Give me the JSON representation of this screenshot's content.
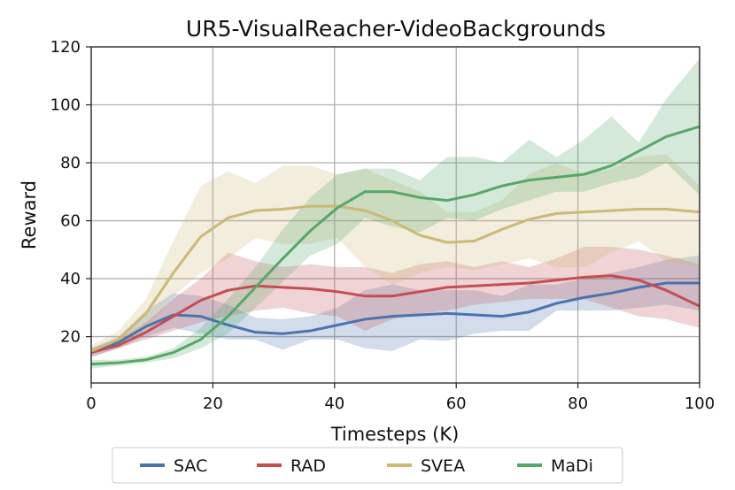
{
  "chart_data": {
    "type": "line",
    "title": "UR5-VisualReacher-VideoBackgrounds",
    "xlabel": "Timesteps (K)",
    "ylabel": "Reward",
    "xlim": [
      0,
      100
    ],
    "ylim": [
      4,
      120
    ],
    "xticks": [
      0,
      20,
      40,
      60,
      80,
      100
    ],
    "yticks": [
      20,
      40,
      60,
      80,
      100,
      120
    ],
    "grid": true,
    "legend_position": "bottom",
    "series": [
      {
        "name": "SAC",
        "color": "#4c72b0",
        "x": [
          0,
          4.5,
          9,
          13.5,
          18,
          22.5,
          27,
          31.5,
          36,
          40.5,
          45,
          49.5,
          54,
          58.5,
          63,
          67.5,
          72,
          76.5,
          81,
          85.5,
          90,
          94.5,
          100
        ],
        "values": [
          14.5,
          18,
          23.5,
          27.5,
          27,
          24,
          21.5,
          21,
          22,
          24,
          26,
          27,
          27.5,
          28,
          27.5,
          27,
          28.5,
          31.5,
          33.5,
          35,
          37,
          38.5,
          38.5
        ],
        "lower": [
          13,
          16,
          20,
          23,
          21,
          19,
          19,
          15.5,
          19,
          19,
          16,
          15,
          19,
          18.5,
          21,
          22,
          22,
          29,
          29,
          29,
          30,
          31,
          29
        ],
        "upper": [
          16,
          20,
          29,
          35,
          34,
          31,
          26.5,
          26,
          27,
          30,
          36,
          38,
          36,
          36,
          36,
          34,
          38,
          38,
          40,
          42,
          44,
          46.5,
          48
        ]
      },
      {
        "name": "RAD",
        "color": "#c44e52",
        "x": [
          0,
          4.5,
          9,
          13.5,
          18,
          22.5,
          27,
          31.5,
          36,
          40.5,
          45,
          49.5,
          54,
          58.5,
          63,
          67.5,
          72,
          76.5,
          81,
          85.5,
          90,
          94.5,
          100
        ],
        "values": [
          14.5,
          17,
          21.5,
          27,
          32.5,
          36,
          37.5,
          37,
          36.5,
          35.5,
          34,
          34,
          35.5,
          37,
          37.5,
          38,
          38.5,
          39.5,
          40.5,
          41,
          39.5,
          36,
          30.5
        ],
        "lower": [
          13,
          16,
          19,
          22,
          25,
          27,
          29,
          30,
          28,
          27,
          22,
          26,
          28,
          29,
          31,
          32,
          33,
          33,
          33,
          30,
          27,
          26,
          23
        ],
        "upper": [
          16,
          19,
          25,
          33,
          40,
          49,
          46,
          44,
          45,
          44,
          44,
          42,
          45,
          46,
          44,
          46,
          44,
          47,
          51,
          51,
          50,
          48,
          45
        ]
      },
      {
        "name": "SVEA",
        "color": "#ccb974",
        "x": [
          0,
          4.5,
          9,
          13.5,
          18,
          22.5,
          27,
          31.5,
          36,
          40.5,
          45,
          49.5,
          54,
          58.5,
          63,
          67.5,
          72,
          76.5,
          81,
          85.5,
          90,
          94.5,
          100
        ],
        "values": [
          15,
          19,
          28,
          42,
          54.5,
          61,
          63.5,
          64,
          65,
          65,
          63.5,
          60,
          55,
          52.5,
          53,
          57,
          60.5,
          62.5,
          63,
          63.5,
          64,
          64,
          63
        ],
        "lower": [
          14,
          17,
          22,
          34,
          42,
          47,
          54,
          52,
          52,
          54,
          44,
          38,
          42,
          44,
          43,
          45,
          47,
          44,
          44,
          49,
          53,
          46,
          44
        ],
        "upper": [
          17,
          22,
          33,
          53,
          72,
          77,
          73,
          79,
          79,
          76,
          78,
          74,
          70,
          63,
          63,
          67,
          76,
          80,
          76,
          78,
          82,
          83,
          72
        ]
      },
      {
        "name": "MaDi",
        "color": "#55a868",
        "x": [
          0,
          4.5,
          9,
          13.5,
          18,
          22.5,
          27,
          31.5,
          36,
          40.5,
          45,
          49.5,
          54,
          58.5,
          63,
          67.5,
          72,
          76.5,
          81,
          85.5,
          90,
          94.5,
          100
        ],
        "values": [
          10.5,
          11,
          12,
          14.5,
          19,
          27,
          37,
          47,
          56.5,
          64.5,
          70,
          70,
          68,
          67,
          69,
          72,
          74,
          75,
          76,
          79,
          84,
          89,
          92.5
        ],
        "lower": [
          9,
          10,
          11,
          12.5,
          16,
          21,
          30,
          39,
          48,
          52,
          61,
          58,
          56,
          61,
          60,
          64,
          67,
          70,
          70,
          73,
          75,
          80,
          69
        ],
        "upper": [
          12,
          12,
          13,
          16,
          23,
          33,
          44,
          57,
          68,
          76,
          78,
          78,
          74,
          82,
          82,
          80,
          88,
          82,
          88,
          96,
          87,
          102,
          116
        ]
      }
    ]
  }
}
